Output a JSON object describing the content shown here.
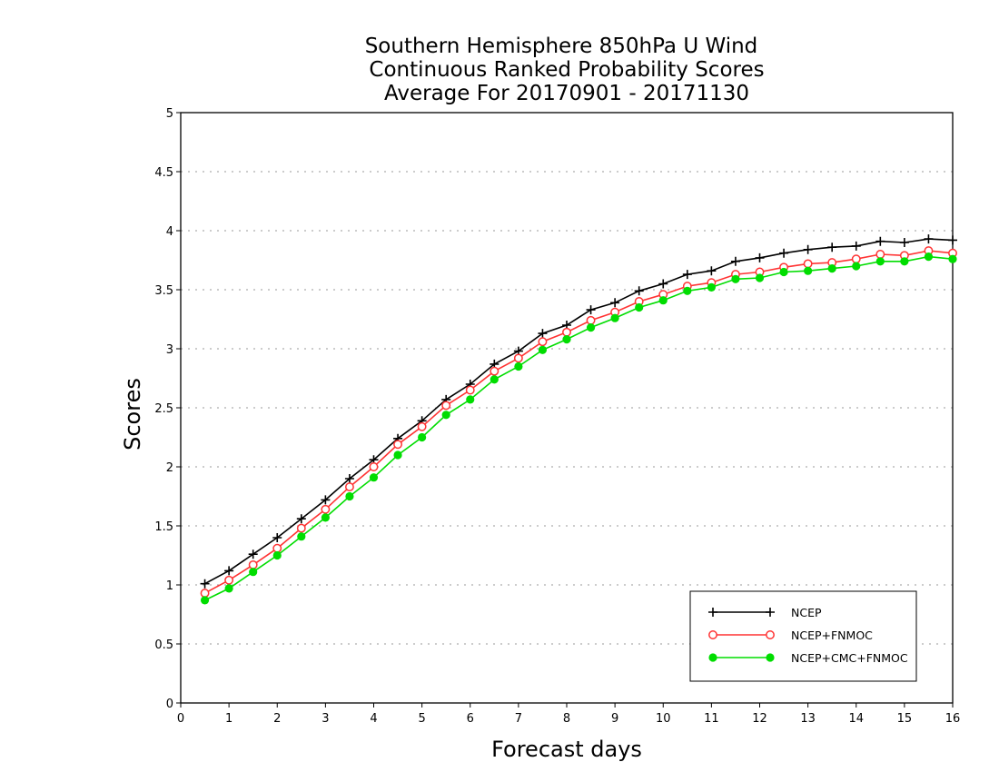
{
  "chart_data": {
    "type": "line",
    "title": [
      "Southern Hemisphere 850hPa U Wind",
      "Continuous Ranked Probability Scores",
      "Average For 20170901 - 20171130"
    ],
    "xlabel": "Forecast days",
    "ylabel": "Scores",
    "xlim": [
      0,
      16
    ],
    "ylim": [
      0,
      5
    ],
    "xticks": [
      "0",
      "1",
      "2",
      "3",
      "4",
      "5",
      "6",
      "7",
      "8",
      "9",
      "10",
      "11",
      "12",
      "13",
      "14",
      "15",
      "16"
    ],
    "yticks": [
      "0",
      "0.5",
      "1",
      "1.5",
      "2",
      "2.5",
      "3",
      "3.5",
      "4",
      "4.5",
      "5"
    ],
    "grid": true,
    "legend_position": "bottom-right",
    "x": [
      0.5,
      1,
      1.5,
      2,
      2.5,
      3,
      3.5,
      4,
      4.5,
      5,
      5.5,
      6,
      6.5,
      7,
      7.5,
      8,
      8.5,
      9,
      9.5,
      10,
      10.5,
      11,
      11.5,
      12,
      12.5,
      13,
      13.5,
      14,
      14.5,
      15,
      15.5,
      16
    ],
    "series": [
      {
        "name": "NCEP",
        "color": "#000000",
        "marker": "plus",
        "values": [
          1.01,
          1.12,
          1.26,
          1.4,
          1.56,
          1.72,
          1.9,
          2.06,
          2.24,
          2.39,
          2.57,
          2.7,
          2.87,
          2.98,
          3.13,
          3.2,
          3.33,
          3.39,
          3.49,
          3.55,
          3.63,
          3.66,
          3.74,
          3.77,
          3.81,
          3.84,
          3.86,
          3.87,
          3.91,
          3.9,
          3.93,
          3.92
        ]
      },
      {
        "name": "NCEP+FNMOC",
        "color": "#ff3333",
        "marker": "open-circle",
        "values": [
          0.93,
          1.04,
          1.17,
          1.31,
          1.48,
          1.64,
          1.83,
          2.0,
          2.19,
          2.34,
          2.52,
          2.65,
          2.81,
          2.92,
          3.06,
          3.14,
          3.24,
          3.31,
          3.4,
          3.46,
          3.53,
          3.56,
          3.63,
          3.65,
          3.69,
          3.72,
          3.73,
          3.76,
          3.8,
          3.79,
          3.83,
          3.81
        ]
      },
      {
        "name": "NCEP+CMC+FNMOC",
        "color": "#00dd00",
        "marker": "filled-circle",
        "values": [
          0.87,
          0.97,
          1.11,
          1.25,
          1.41,
          1.57,
          1.75,
          1.91,
          2.1,
          2.25,
          2.44,
          2.57,
          2.74,
          2.85,
          2.99,
          3.08,
          3.18,
          3.26,
          3.35,
          3.41,
          3.49,
          3.52,
          3.59,
          3.6,
          3.65,
          3.66,
          3.68,
          3.7,
          3.74,
          3.74,
          3.78,
          3.76
        ]
      }
    ]
  }
}
